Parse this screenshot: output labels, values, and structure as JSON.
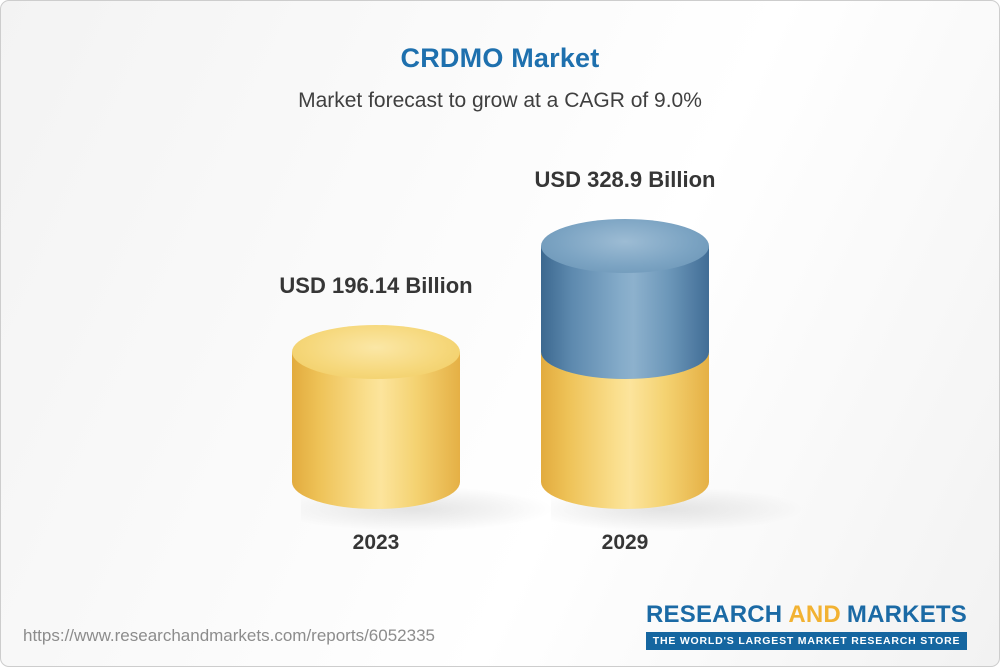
{
  "chart_data": {
    "type": "bar",
    "variant": "3d-cylinder",
    "title": "CRDMO Market",
    "subtitle": "Market forecast to grow at a CAGR of 9.0%",
    "cagr": "9.0%",
    "unit": "USD Billion",
    "categories": [
      "2023",
      "2029"
    ],
    "values": [
      196.14,
      328.9
    ],
    "value_labels": [
      "USD 196.14 Billion",
      "USD 328.9 Billion"
    ],
    "colors": {
      "base_bar": "#f2c95f",
      "growth_segment": "#5d89ae",
      "title": "#1e70ae"
    }
  },
  "footer": {
    "url": "https://www.researchandmarkets.com/reports/6052335",
    "logo": {
      "word1": "RESEARCH",
      "word2": "AND",
      "word3": "MARKETS",
      "tagline": "THE WORLD'S LARGEST MARKET RESEARCH STORE"
    }
  }
}
